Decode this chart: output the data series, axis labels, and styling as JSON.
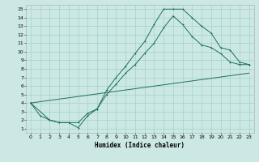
{
  "xlabel": "Humidex (Indice chaleur)",
  "bg_color": "#cce8e4",
  "grid_color": "#99ccc4",
  "line_color": "#1e6e62",
  "xlim": [
    -0.5,
    23.5
  ],
  "ylim": [
    0.5,
    15.5
  ],
  "xticks": [
    0,
    1,
    2,
    3,
    4,
    5,
    6,
    7,
    8,
    9,
    10,
    11,
    12,
    13,
    14,
    15,
    16,
    17,
    18,
    19,
    20,
    21,
    22,
    23
  ],
  "yticks": [
    1,
    2,
    3,
    4,
    5,
    6,
    7,
    8,
    9,
    10,
    11,
    12,
    13,
    14,
    15
  ],
  "line1_x": [
    0,
    1,
    2,
    3,
    4,
    5,
    6,
    7,
    8,
    9,
    10,
    11,
    12,
    13,
    14,
    15,
    16,
    17,
    18,
    19,
    20,
    21,
    22,
    23
  ],
  "line1_y": [
    4.0,
    2.5,
    2.0,
    1.7,
    1.7,
    1.1,
    2.5,
    3.3,
    5.5,
    7.0,
    8.3,
    9.8,
    11.2,
    13.2,
    15.0,
    15.0,
    15.0,
    14.0,
    13.0,
    12.2,
    10.5,
    10.2,
    8.8,
    8.5
  ],
  "line2_x": [
    0,
    2,
    3,
    4,
    5,
    6,
    7,
    8,
    9,
    10,
    11,
    12,
    13,
    14,
    15,
    16,
    17,
    18,
    19,
    20,
    21,
    22,
    23
  ],
  "line2_y": [
    4.0,
    2.0,
    1.7,
    1.7,
    1.7,
    2.8,
    3.3,
    5.0,
    6.2,
    7.5,
    8.5,
    9.8,
    11.0,
    12.8,
    14.2,
    13.2,
    11.8,
    10.8,
    10.5,
    9.8,
    8.8,
    8.5,
    8.5
  ],
  "line3_x": [
    0,
    23
  ],
  "line3_y": [
    4.0,
    7.5
  ]
}
